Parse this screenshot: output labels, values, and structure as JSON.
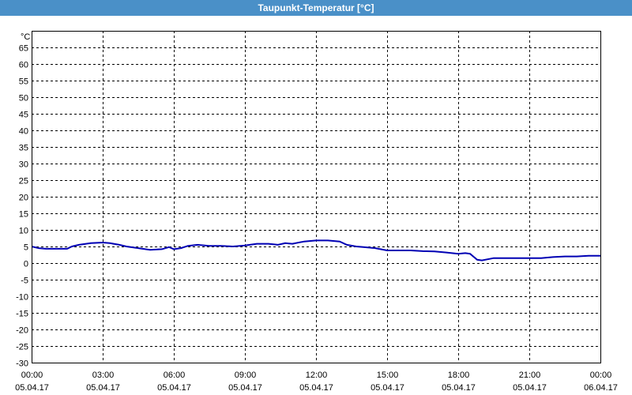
{
  "window": {
    "title": "Taupunkt-Temperatur [°C]"
  },
  "chart_data": {
    "type": "line",
    "title": "Taupunkt-Temperatur [°C]",
    "ylabel": "°C",
    "xlabel": "",
    "ylim": [
      -30,
      70
    ],
    "yticks": [
      65,
      60,
      55,
      50,
      45,
      40,
      35,
      30,
      25,
      20,
      15,
      10,
      5,
      0,
      -5,
      -10,
      -15,
      -20,
      -25,
      -30
    ],
    "xlim": [
      0,
      24
    ],
    "xticks": [
      {
        "time": "00:00",
        "date": "05.04.17"
      },
      {
        "time": "03:00",
        "date": "05.04.17"
      },
      {
        "time": "06:00",
        "date": "05.04.17"
      },
      {
        "time": "09:00",
        "date": "05.04.17"
      },
      {
        "time": "12:00",
        "date": "05.04.17"
      },
      {
        "time": "15:00",
        "date": "05.04.17"
      },
      {
        "time": "18:00",
        "date": "05.04.17"
      },
      {
        "time": "21:00",
        "date": "05.04.17"
      },
      {
        "time": "00:00",
        "date": "06.04.17"
      }
    ],
    "grid": true,
    "line_color": "#0000b4",
    "series": [
      {
        "x": [
          0,
          0.3,
          0.6,
          1.0,
          1.5,
          1.7,
          2.0,
          2.5,
          3.0,
          3.3,
          3.7,
          4.0,
          4.5,
          5.0,
          5.5,
          5.8,
          6.0,
          6.3,
          6.6,
          7.0,
          7.5,
          8.0,
          8.5,
          9.0,
          9.5,
          10.0,
          10.4,
          10.7,
          11.0,
          11.5,
          12.0,
          12.5,
          13.0,
          13.3,
          13.7,
          14.0,
          14.5,
          15.0,
          15.5,
          16.0,
          16.5,
          17.0,
          17.5,
          18.0,
          18.3,
          18.5,
          18.8,
          19.0,
          19.5,
          20.0,
          20.5,
          21.0,
          21.5,
          22.0,
          22.5,
          23.0,
          23.5,
          24.0
        ],
        "y": [
          5,
          4.5,
          4.3,
          4.3,
          4.3,
          5,
          5.5,
          6,
          6.2,
          6,
          5.5,
          5,
          4.5,
          4,
          4.2,
          4.8,
          4.2,
          4.5,
          5.2,
          5.5,
          5.2,
          5.2,
          5.0,
          5.3,
          5.8,
          5.8,
          5.5,
          6,
          5.8,
          6.5,
          6.8,
          6.8,
          6.5,
          5.5,
          5,
          4.8,
          4.5,
          3.8,
          3.8,
          3.8,
          3.6,
          3.5,
          3.2,
          2.8,
          3.0,
          2.8,
          1.0,
          0.8,
          1.5,
          1.5,
          1.5,
          1.5,
          1.5,
          1.8,
          2.0,
          2.0,
          2.2,
          2.2
        ]
      }
    ]
  }
}
